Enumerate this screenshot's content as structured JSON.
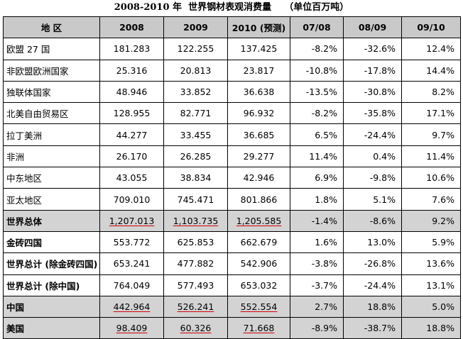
{
  "title": "2008-2010 年  世界钢材表观消费量    （单位百万吨）",
  "headers": [
    "地 区",
    "2008",
    "2009",
    "2010 (预测)",
    "07/08",
    "08/09",
    "09/10"
  ],
  "rows": [
    {
      "region": "欧盟 27 国",
      "v2008": "181.283",
      "v2009": "122.255",
      "v2010": "137.425",
      "c0708": "-8.2%",
      "c0809": "-32.6%",
      "c0910": "12.4%",
      "bold": false,
      "grey": false,
      "underline": false
    },
    {
      "region": "非欧盟欧洲国家",
      "v2008": "25.316",
      "v2009": "20.813",
      "v2010": "23.817",
      "c0708": "-10.8%",
      "c0809": "-17.8%",
      "c0910": "14.4%",
      "bold": false,
      "grey": false,
      "underline": false
    },
    {
      "region": "独联体国家",
      "v2008": "48.946",
      "v2009": "33.852",
      "v2010": "36.638",
      "c0708": "-13.5%",
      "c0809": "-30.8%",
      "c0910": "8.2%",
      "bold": false,
      "grey": false,
      "underline": false
    },
    {
      "region": "北美自由贸易区",
      "v2008": "128.955",
      "v2009": "82.771",
      "v2010": "96.932",
      "c0708": "-8.2%",
      "c0809": "-35.8%",
      "c0910": "17.1%",
      "bold": false,
      "grey": false,
      "underline": false
    },
    {
      "region": "拉丁美洲",
      "v2008": "44.277",
      "v2009": "33.455",
      "v2010": "36.685",
      "c0708": "6.5%",
      "c0809": "-24.4%",
      "c0910": "9.7%",
      "bold": false,
      "grey": false,
      "underline": false
    },
    {
      "region": "非洲",
      "v2008": "26.170",
      "v2009": "26.285",
      "v2010": "29.277",
      "c0708": "11.4%",
      "c0809": "0.4%",
      "c0910": "11.4%",
      "bold": false,
      "grey": false,
      "underline": false
    },
    {
      "region": "中东地区",
      "v2008": "43.055",
      "v2009": "38.834",
      "v2010": "42.946",
      "c0708": "6.9%",
      "c0809": "-9.8%",
      "c0910": "10.6%",
      "bold": false,
      "grey": false,
      "underline": false
    },
    {
      "region": "亚太地区",
      "v2008": "709.010",
      "v2009": "745.471",
      "v2010": "801.866",
      "c0708": "1.8%",
      "c0809": "5.1%",
      "c0910": "7.6%",
      "bold": false,
      "grey": false,
      "underline": false
    },
    {
      "region": "世界总体",
      "v2008": "1,207.013",
      "v2009": "1,103.735",
      "v2010": "1,205.585",
      "c0708": "-1.4%",
      "c0809": "-8.6%",
      "c0910": "9.2%",
      "bold": true,
      "grey": true,
      "underline": true
    },
    {
      "region": "金砖四国",
      "v2008": "553.772",
      "v2009": "625.853",
      "v2010": "662.679",
      "c0708": "1.6%",
      "c0809": "13.0%",
      "c0910": "5.9%",
      "bold": true,
      "grey": false,
      "underline": false
    },
    {
      "region": "世界总计 (除金砖四国)",
      "v2008": "653.241",
      "v2009": "477.882",
      "v2010": "542.906",
      "c0708": "-3.8%",
      "c0809": "-26.8%",
      "c0910": "13.6%",
      "bold": true,
      "grey": false,
      "underline": false
    },
    {
      "region": "世界总计 (除中国)",
      "v2008": "764.049",
      "v2009": "577.493",
      "v2010": "653.032",
      "c0708": "-3.7%",
      "c0809": "-24.4%",
      "c0910": "13.1%",
      "bold": true,
      "grey": false,
      "underline": false
    },
    {
      "region": "中国",
      "v2008": "442.964",
      "v2009": "526.241",
      "v2010": "552.554",
      "c0708": "2.7%",
      "c0809": "18.8%",
      "c0910": "5.0%",
      "bold": true,
      "grey": true,
      "underline": true
    },
    {
      "region": "美国",
      "v2008": "98.409",
      "v2009": "60.326",
      "v2010": "71.668",
      "c0708": "-8.9%",
      "c0809": "-38.7%",
      "c0910": "18.8%",
      "bold": true,
      "grey": true,
      "underline": true
    }
  ]
}
